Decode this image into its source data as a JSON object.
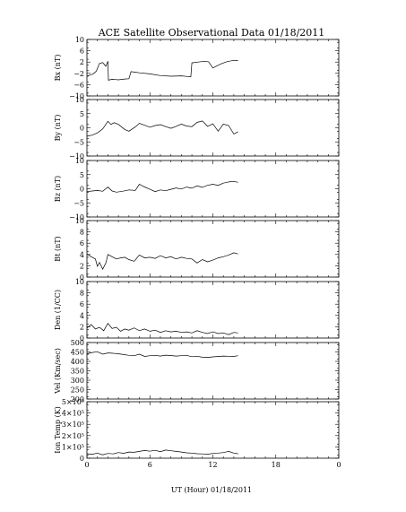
{
  "chart_data": {
    "type": "line",
    "title": "ACE Satellite Observational Data   01/18/2011",
    "xlabel": "UT (Hour)   01/18/2011",
    "xlim": [
      0,
      24
    ],
    "x_tick_labels": [
      "0",
      "6",
      "12",
      "18",
      "0"
    ],
    "grid": false,
    "panels": [
      {
        "ylabel": "Bx (nT)",
        "ylim": [
          -10,
          10
        ],
        "tick_labels": [
          "−10",
          "−6",
          "−2",
          "2",
          "6",
          "10"
        ],
        "series": [
          {
            "x": [
              0,
              0.3,
              0.6,
              0.9,
              1.2,
              1.5,
              1.8,
              2.0,
              2.05,
              2.4,
              3.0,
              3.6,
              4.0,
              4.2,
              4.6,
              5.0,
              6.0,
              7.0,
              8.0,
              9.0,
              9.6,
              9.9,
              10.0,
              10.6,
              11.2,
              11.6,
              12.0,
              12.2,
              12.8,
              13.4,
              14.0,
              14.4
            ],
            "y": [
              -3,
              -2.6,
              -2.2,
              -1.2,
              1.5,
              1.8,
              0.5,
              2.3,
              -4.4,
              -4.1,
              -4.3,
              -4.0,
              -3.9,
              -1.4,
              -1.6,
              -1.8,
              -2.2,
              -2.8,
              -3.0,
              -2.9,
              -3.1,
              -3.2,
              1.7,
              2.0,
              2.3,
              2.1,
              -0.1,
              0.3,
              1.4,
              2.2,
              2.6,
              2.5
            ]
          }
        ]
      },
      {
        "ylabel": "By (nT)",
        "ylim": [
          -10,
          10
        ],
        "tick_labels": [
          "−10",
          "−5",
          "0",
          "5",
          "10"
        ],
        "series": [
          {
            "x": [
              0,
              0.5,
              1.0,
              1.5,
              2.0,
              2.3,
              2.6,
              3.0,
              3.6,
              4.0,
              4.6,
              5.0,
              5.5,
              6.0,
              6.5,
              7.0,
              7.5,
              8.0,
              8.5,
              9.0,
              9.5,
              10.0,
              10.5,
              11.0,
              11.5,
              12.0,
              12.5,
              13.0,
              13.5,
              14.0,
              14.4
            ],
            "y": [
              -3,
              -2.6,
              -1.8,
              -0.4,
              2.3,
              1.2,
              1.8,
              1.2,
              -0.6,
              -1.2,
              0.3,
              1.6,
              0.9,
              0.2,
              0.8,
              1.1,
              0.4,
              -0.2,
              0.5,
              1.3,
              0.6,
              0.4,
              1.9,
              2.4,
              0.5,
              1.4,
              -1.2,
              1.3,
              0.8,
              -2.2,
              -1.4
            ]
          }
        ]
      },
      {
        "ylabel": "Bz (nT)",
        "ylim": [
          -10,
          10
        ],
        "tick_labels": [
          "−10",
          "−5",
          "0",
          "5",
          "10"
        ],
        "series": [
          {
            "x": [
              0,
              0.5,
              1.0,
              1.5,
              2.0,
              2.4,
              2.8,
              3.4,
              4.0,
              4.6,
              5.0,
              5.4,
              6.0,
              6.5,
              7.0,
              7.5,
              8.0,
              8.5,
              9.0,
              9.5,
              10.0,
              10.5,
              11.0,
              11.5,
              12.0,
              12.5,
              13.0,
              13.5,
              14.0,
              14.4
            ],
            "y": [
              -1.0,
              -0.8,
              -0.6,
              -0.9,
              0.6,
              -0.8,
              -1.2,
              -0.9,
              -0.4,
              -0.6,
              1.6,
              0.8,
              -0.2,
              -1.0,
              -0.4,
              -0.7,
              -0.2,
              0.3,
              -0.1,
              0.6,
              0.2,
              1.0,
              0.5,
              1.2,
              1.6,
              1.2,
              2.0,
              2.4,
              2.6,
              2.3
            ]
          }
        ]
      },
      {
        "ylabel": "Bt (nT)",
        "ylim": [
          0,
          10
        ],
        "tick_labels": [
          "0",
          "2",
          "4",
          "6",
          "8",
          "10"
        ],
        "series": [
          {
            "x": [
              0,
              0.4,
              0.8,
              1.0,
              1.2,
              1.5,
              1.8,
              2.0,
              2.4,
              2.8,
              3.2,
              3.6,
              4.0,
              4.5,
              5.0,
              5.5,
              6.0,
              6.5,
              7.0,
              7.5,
              8.0,
              8.5,
              9.0,
              9.5,
              10.0,
              10.5,
              11.0,
              11.5,
              12.0,
              12.5,
              13.0,
              13.5,
              14.0,
              14.4
            ],
            "y": [
              4.1,
              3.6,
              3.2,
              1.9,
              2.6,
              1.4,
              2.5,
              4.0,
              3.6,
              3.2,
              3.4,
              3.5,
              3.1,
              2.8,
              3.9,
              3.4,
              3.5,
              3.3,
              3.8,
              3.4,
              3.6,
              3.2,
              3.5,
              3.3,
              3.2,
              2.5,
              3.1,
              2.7,
              3.0,
              3.4,
              3.6,
              3.9,
              4.3,
              4.1
            ]
          }
        ]
      },
      {
        "ylabel": "Den (1/CC)",
        "ylim": [
          0,
          10
        ],
        "tick_labels": [
          "0",
          "2",
          "4",
          "6",
          "8",
          "10"
        ],
        "series": [
          {
            "x": [
              0,
              0.4,
              0.8,
              1.2,
              1.6,
              2.0,
              2.4,
              2.8,
              3.2,
              3.6,
              4.0,
              4.5,
              5.0,
              5.5,
              6.0,
              6.5,
              7.0,
              7.5,
              8.0,
              8.5,
              9.0,
              9.5,
              10.0,
              10.5,
              11.0,
              11.5,
              12.0,
              12.5,
              13.0,
              13.5,
              14.0,
              14.4
            ],
            "y": [
              1.8,
              2.4,
              1.6,
              1.9,
              1.3,
              2.6,
              1.7,
              1.9,
              1.2,
              1.6,
              1.4,
              1.8,
              1.3,
              1.6,
              1.2,
              1.4,
              1.0,
              1.3,
              1.1,
              1.2,
              1.0,
              1.1,
              0.9,
              1.3,
              1.0,
              0.8,
              1.1,
              0.8,
              0.9,
              0.6,
              1.0,
              0.9
            ]
          }
        ]
      },
      {
        "ylabel": "Vel (Km/sec)",
        "ylim": [
          200,
          500
        ],
        "tick_labels": [
          "200",
          "250",
          "300",
          "350",
          "400",
          "450",
          "500"
        ],
        "series": [
          {
            "x": [
              0,
              0.5,
              1.0,
              1.5,
              2.0,
              2.5,
              3.0,
              3.5,
              4.0,
              4.5,
              5.0,
              5.5,
              6.0,
              6.5,
              7.0,
              7.5,
              8.0,
              8.5,
              9.0,
              9.5,
              10.0,
              10.5,
              11.0,
              11.5,
              12.0,
              12.5,
              13.0,
              13.5,
              14.0,
              14.4
            ],
            "y": [
              440,
              447,
              451,
              438,
              445,
              443,
              440,
              436,
              432,
              430,
              438,
              426,
              430,
              432,
              428,
              433,
              431,
              428,
              430,
              432,
              425,
              427,
              422,
              421,
              424,
              426,
              428,
              427,
              426,
              430
            ]
          }
        ]
      },
      {
        "ylabel": "Ion Temp (K)",
        "ylim": [
          0,
          500000
        ],
        "tick_labels": [
          "0",
          "1×10⁵",
          "2×10⁵",
          "3×10⁵",
          "4×10⁵",
          "5×10⁵"
        ],
        "series": [
          {
            "x": [
              0,
              0.5,
              1.0,
              1.5,
              2.0,
              2.5,
              3.0,
              3.5,
              4.0,
              4.5,
              5.0,
              5.5,
              6.0,
              6.5,
              7.0,
              7.5,
              8.0,
              8.5,
              9.0,
              9.5,
              10.0,
              10.5,
              11.0,
              11.5,
              12.0,
              12.5,
              13.0,
              13.5,
              14.0,
              14.4
            ],
            "y": [
              40000,
              35000,
              45000,
              30000,
              42000,
              38000,
              50000,
              44000,
              55000,
              52000,
              60000,
              68000,
              62000,
              70000,
              58000,
              72000,
              66000,
              60000,
              55000,
              48000,
              45000,
              40000,
              38000,
              35000,
              42000,
              45000,
              50000,
              60000,
              45000,
              40000
            ]
          }
        ]
      }
    ]
  }
}
